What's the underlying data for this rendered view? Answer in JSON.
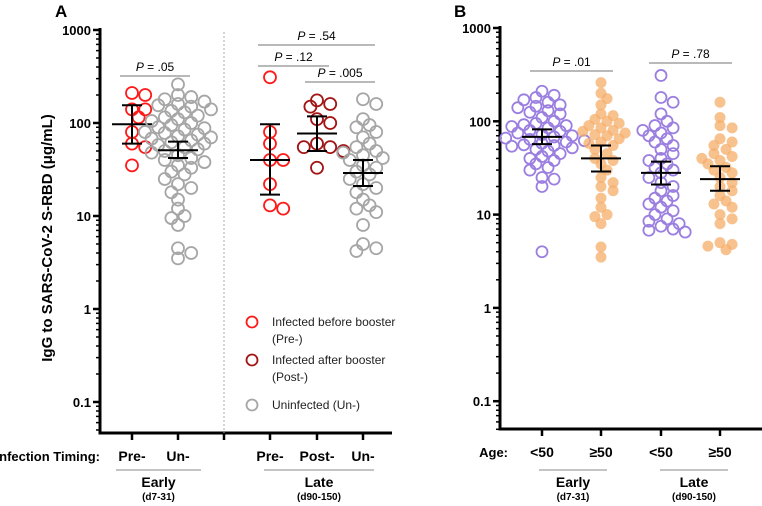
{
  "colors": {
    "pre": "#ff1a1a",
    "post": "#a31515",
    "un": "#a6a6a6",
    "young": "#9b7fe0",
    "old": "#f5ae6a",
    "axis": "#000000"
  },
  "chart_data": [
    {
      "panel": "A",
      "type": "scatter",
      "ylabel": "IgG to SARS-CoV-2 S-RBD (μg/mL)",
      "yscale": "log",
      "ylim": [
        0.05,
        1000
      ],
      "yticks": [
        "1000",
        "100",
        "10",
        "1",
        "0.1"
      ],
      "xaxis_title": "Infection Timing:",
      "groups": [
        {
          "name": "Early",
          "sub": "(d7-31)"
        },
        {
          "name": "Late",
          "sub": "(d90-150)"
        }
      ],
      "categories": [
        {
          "label": "Pre-",
          "group": 0,
          "series": "pre",
          "mean": 97,
          "ci": [
            60,
            155
          ],
          "values": [
            200,
            210,
            140,
            140,
            115,
            80,
            60,
            55,
            35
          ]
        },
        {
          "label": "Un-",
          "group": 0,
          "series": "un",
          "mean": 51,
          "ci": [
            42,
            63
          ],
          "values": [
            260,
            200,
            190,
            180,
            170,
            160,
            155,
            150,
            140,
            135,
            130,
            120,
            115,
            110,
            105,
            100,
            95,
            90,
            88,
            85,
            80,
            78,
            75,
            72,
            70,
            68,
            65,
            62,
            60,
            58,
            55,
            52,
            50,
            48,
            45,
            42,
            40,
            38,
            35,
            33,
            30,
            28,
            25,
            22,
            20,
            18,
            15,
            12,
            10,
            9.5,
            8,
            4.5,
            4,
            3.5
          ]
        },
        {
          "label": "Pre-",
          "group": 1,
          "series": "pre",
          "mean": 40,
          "ci": [
            17,
            97
          ],
          "values": [
            310,
            80,
            60,
            40,
            40,
            22,
            13,
            12
          ]
        },
        {
          "label": "Post-",
          "group": 1,
          "series": "post",
          "mean": 77,
          "ci": [
            50,
            118
          ],
          "values": [
            175,
            160,
            150,
            110,
            100,
            60,
            55,
            55,
            50,
            33
          ]
        },
        {
          "label": "Un-",
          "group": 1,
          "series": "un",
          "mean": 29,
          "ci": [
            21,
            40
          ],
          "values": [
            180,
            160,
            110,
            95,
            90,
            80,
            70,
            60,
            55,
            50,
            48,
            45,
            42,
            40,
            35,
            33,
            30,
            28,
            25,
            22,
            20,
            18,
            15,
            13,
            12,
            11,
            8,
            5,
            4.5,
            4.2
          ]
        }
      ],
      "comparisons": [
        {
          "text": "P = .05",
          "from": 0,
          "to": 1
        },
        {
          "text": "P = .54",
          "from": 2,
          "to": 4
        },
        {
          "text": "P = .12",
          "from": 2,
          "to": 3
        },
        {
          "text": "P = .005",
          "from": 3,
          "to": 4
        }
      ],
      "legend": [
        {
          "series": "pre",
          "line1": "Infected before booster",
          "line2": "(Pre-)"
        },
        {
          "series": "post",
          "line1": "Infected after booster",
          "line2": "(Post-)"
        },
        {
          "series": "un",
          "line1": "Uninfected (Un-)",
          "line2": ""
        }
      ]
    },
    {
      "panel": "B",
      "type": "scatter",
      "yscale": "log",
      "ylim": [
        0.05,
        1000
      ],
      "yticks": [
        "1000",
        "100",
        "10",
        "1",
        "0.1"
      ],
      "xaxis_title": "Age:",
      "groups": [
        {
          "name": "Early",
          "sub": "(d7-31)"
        },
        {
          "name": "Late",
          "sub": "(d90-150)"
        }
      ],
      "categories": [
        {
          "label": "<50",
          "group": 0,
          "series": "young",
          "mean": 68,
          "ci": [
            57,
            82
          ],
          "values": [
            210,
            190,
            180,
            170,
            160,
            150,
            145,
            140,
            130,
            125,
            120,
            110,
            100,
            95,
            92,
            90,
            88,
            85,
            80,
            78,
            75,
            72,
            70,
            68,
            66,
            64,
            62,
            60,
            58,
            56,
            55,
            54,
            52,
            50,
            48,
            45,
            42,
            40,
            38,
            35,
            32,
            30,
            25,
            24,
            20,
            4
          ]
        },
        {
          "label": "≥50",
          "group": 0,
          "series": "old",
          "mean": 40,
          "ci": [
            29,
            55
          ],
          "values": [
            260,
            200,
            175,
            150,
            120,
            115,
            105,
            100,
            95,
            90,
            85,
            80,
            78,
            75,
            72,
            70,
            65,
            60,
            58,
            55,
            50,
            45,
            40,
            38,
            35,
            30,
            25,
            22,
            20,
            18,
            15,
            12,
            10,
            9.5,
            8,
            4.5,
            3.5
          ]
        },
        {
          "label": "<50",
          "group": 1,
          "series": "young",
          "mean": 28,
          "ci": [
            21,
            37
          ],
          "values": [
            310,
            180,
            160,
            120,
            100,
            90,
            85,
            80,
            75,
            70,
            65,
            60,
            55,
            50,
            45,
            40,
            38,
            35,
            32,
            30,
            28,
            25,
            22,
            20,
            18,
            16,
            15,
            14,
            13,
            12,
            11,
            10,
            9,
            8.5,
            8,
            7.5,
            7,
            6.8,
            6.5
          ]
        },
        {
          "label": "≥50",
          "group": 1,
          "series": "old",
          "mean": 24,
          "ci": [
            18,
            33
          ],
          "values": [
            160,
            110,
            90,
            85,
            65,
            60,
            55,
            50,
            45,
            42,
            40,
            38,
            35,
            32,
            30,
            28,
            25,
            22,
            20,
            18,
            16,
            14,
            13,
            12,
            10,
            9,
            8,
            5,
            4.8,
            4.6,
            4.2
          ]
        }
      ],
      "comparisons": [
        {
          "text": "P = .01",
          "from": 0,
          "to": 1
        },
        {
          "text": "P = .78",
          "from": 2,
          "to": 3
        }
      ]
    }
  ]
}
